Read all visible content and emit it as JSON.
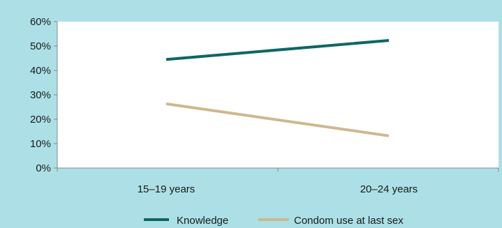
{
  "chart_data": {
    "type": "line",
    "categories": [
      "15–19 years",
      "20–24 years"
    ],
    "series": [
      {
        "name": "Knowledge",
        "values": [
          44.5,
          52.3
        ],
        "color": "#0e6765"
      },
      {
        "name": "Condom use at last sex",
        "values": [
          26.3,
          13.2
        ],
        "color": "#cdb891"
      }
    ],
    "ylim": [
      0,
      60
    ],
    "yticks": [
      "0%",
      "10%",
      "20%",
      "30%",
      "40%",
      "50%",
      "60%"
    ],
    "ytick_values": [
      0,
      10,
      20,
      30,
      40,
      50,
      60
    ],
    "grid": false,
    "legend_position": "bottom-center",
    "title": "",
    "xlabel": "",
    "ylabel": ""
  },
  "colors": {
    "background": "#ace0e6",
    "plot_area": "#ffffff",
    "axis": "#888888"
  }
}
